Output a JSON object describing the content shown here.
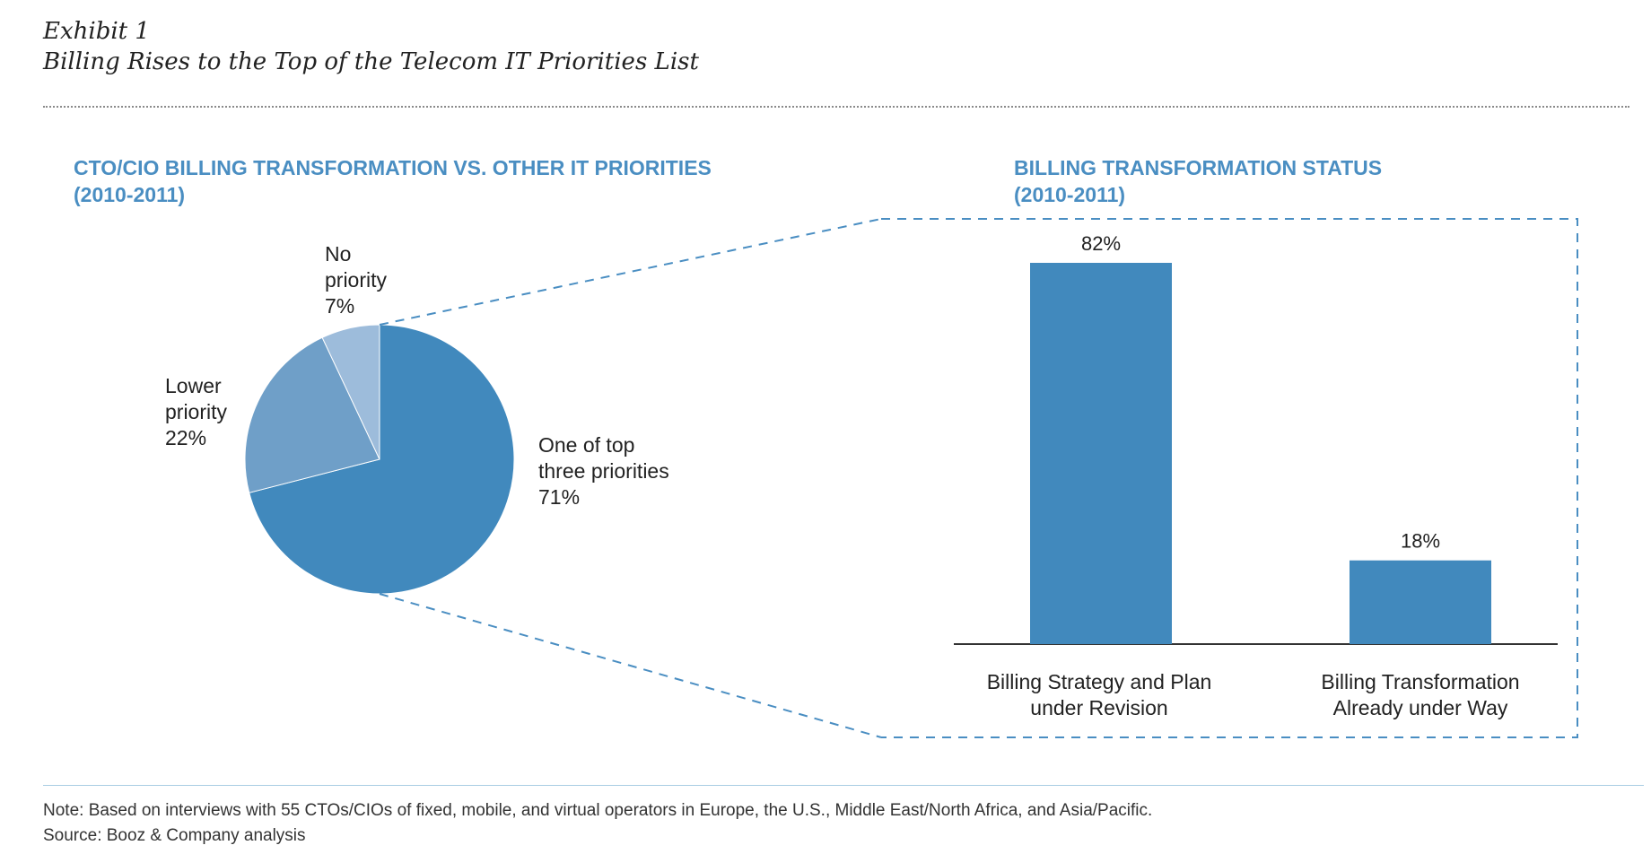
{
  "exhibit": {
    "label": "Exhibit 1",
    "title": "Billing Rises to the Top of the Telecom IT Priorities List"
  },
  "pie_chart": {
    "title_line1": "CTO/CIO BILLING TRANSFORMATION VS. OTHER IT PRIORITIES",
    "title_line2": "(2010-2011)"
  },
  "bar_chart": {
    "title_line1": "BILLING TRANSFORMATION STATUS",
    "title_line2": "(2010-2011)"
  },
  "footer": {
    "note": "Note: Based on interviews with 55 CTOs/CIOs of fixed, mobile, and virtual operators in Europe, the U.S., Middle East/North Africa, and Asia/Pacific.",
    "source": "Source: Booz & Company analysis"
  },
  "colors": {
    "accent": "#4a8ec2",
    "slice_top3": "#4189bd",
    "slice_lower": "#6f9fc8",
    "slice_none": "#9dbcdb",
    "bar": "#4189bd"
  },
  "chart_data": [
    {
      "type": "pie",
      "title": "CTO/CIO BILLING TRANSFORMATION VS. OTHER IT PRIORITIES (2010-2011)",
      "slices": [
        {
          "label_lines": [
            "One of top",
            "three priorities"
          ],
          "value_label": "71%",
          "value": 71,
          "color": "#4189bd"
        },
        {
          "label_lines": [
            "Lower",
            "priority"
          ],
          "value_label": "22%",
          "value": 22,
          "color": "#6f9fc8"
        },
        {
          "label_lines": [
            "No",
            "priority"
          ],
          "value_label": "7%",
          "value": 7,
          "color": "#9dbcdb"
        }
      ]
    },
    {
      "type": "bar",
      "title": "BILLING TRANSFORMATION STATUS (2010-2011)",
      "categories": [
        [
          "Billing Strategy and Plan",
          "under Revision"
        ],
        [
          "Billing Transformation",
          "Already under Way"
        ]
      ],
      "values": [
        82,
        18
      ],
      "value_labels": [
        "82%",
        "18%"
      ],
      "ylim": [
        0,
        100
      ]
    }
  ]
}
